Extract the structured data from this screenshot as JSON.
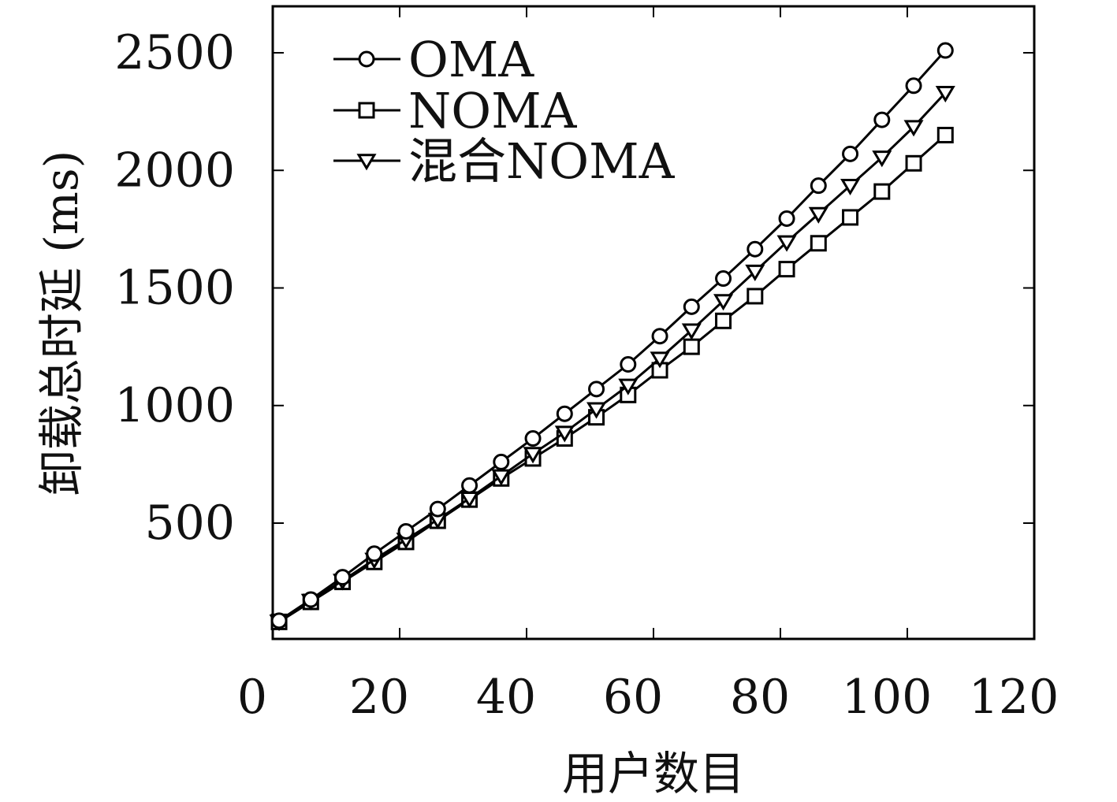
{
  "chart_data": {
    "type": "line",
    "xlabel": "用户数目",
    "ylabel": "卸载总时延 (ms)",
    "xlim": [
      0,
      120
    ],
    "ylim": [
      0,
      2700
    ],
    "x_ticks": [
      0,
      20,
      40,
      60,
      80,
      100,
      120
    ],
    "y_ticks": [
      500,
      1000,
      1500,
      2000,
      2500
    ],
    "grid": false,
    "legend_position": "top-left",
    "x": [
      1,
      6,
      11,
      16,
      21,
      26,
      31,
      36,
      41,
      46,
      51,
      56,
      61,
      66,
      71,
      76,
      81,
      86,
      91,
      96,
      101,
      106
    ],
    "series": [
      {
        "name": "OMA",
        "marker": "circle",
        "values": [
          85,
          175,
          270,
          370,
          465,
          560,
          660,
          760,
          860,
          965,
          1070,
          1175,
          1295,
          1420,
          1540,
          1665,
          1795,
          1935,
          2070,
          2215,
          2360,
          2510
        ]
      },
      {
        "name": "NOMA",
        "marker": "square",
        "values": [
          80,
          165,
          250,
          335,
          420,
          510,
          600,
          690,
          775,
          860,
          950,
          1045,
          1150,
          1250,
          1360,
          1465,
          1580,
          1690,
          1800,
          1910,
          2030,
          2150
        ]
      },
      {
        "name": "混合NOMA",
        "marker": "triangle-down",
        "values": [
          82,
          170,
          255,
          345,
          430,
          515,
          605,
          700,
          795,
          885,
          985,
          1085,
          1200,
          1320,
          1445,
          1570,
          1695,
          1815,
          1935,
          2055,
          2185,
          2330
        ]
      }
    ]
  }
}
